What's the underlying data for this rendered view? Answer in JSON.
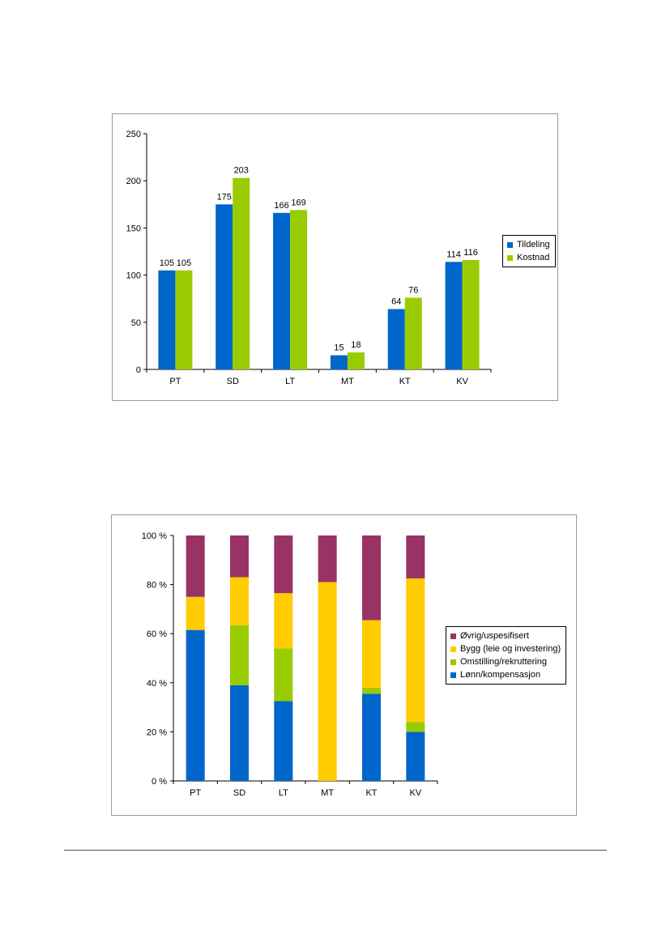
{
  "colors": {
    "blue": "#0066CC",
    "green": "#99CC00",
    "yellow": "#FFCC00",
    "purple": "#993366"
  },
  "chart_data": [
    {
      "type": "bar",
      "categories": [
        "PT",
        "SD",
        "LT",
        "MT",
        "KT",
        "KV"
      ],
      "series": [
        {
          "name": "Tildeling",
          "values": [
            105,
            175,
            166,
            15,
            64,
            114
          ],
          "color": "#0066CC"
        },
        {
          "name": "Kostnad",
          "values": [
            105,
            203,
            169,
            18,
            76,
            116
          ],
          "color": "#99CC00"
        }
      ],
      "ylim": [
        0,
        250
      ],
      "yticks": [
        0,
        50,
        100,
        150,
        200,
        250
      ],
      "data_labels": true,
      "grid": false,
      "legend_position": "right"
    },
    {
      "type": "bar",
      "stacked": "percent",
      "categories": [
        "PT",
        "SD",
        "LT",
        "MT",
        "KT",
        "KV"
      ],
      "series": [
        {
          "name": "Lønn/kompensasjon",
          "values": [
            61.5,
            39,
            32.5,
            0,
            35.5,
            20
          ],
          "color": "#0066CC"
        },
        {
          "name": "Omstilling/rekruttering",
          "values": [
            0,
            24.5,
            21.5,
            0,
            2.5,
            4
          ],
          "color": "#99CC00"
        },
        {
          "name": "Bygg (leie og investering)",
          "values": [
            13.5,
            19.5,
            22.5,
            81,
            27.5,
            58.5
          ],
          "color": "#FFCC00"
        },
        {
          "name": "Øvrig/uspesifisert",
          "values": [
            25,
            17,
            23.5,
            19,
            34.5,
            17.5
          ],
          "color": "#993366"
        }
      ],
      "ylim": [
        0,
        100
      ],
      "yticks": [
        "0 %",
        "20 %",
        "40 %",
        "60 %",
        "80 %",
        "100 %"
      ],
      "grid": false,
      "legend_position": "right",
      "legend_order": [
        "Øvrig/uspesifisert",
        "Bygg (leie og investering)",
        "Omstilling/rekruttering",
        "Lønn/kompensasjon"
      ]
    }
  ]
}
